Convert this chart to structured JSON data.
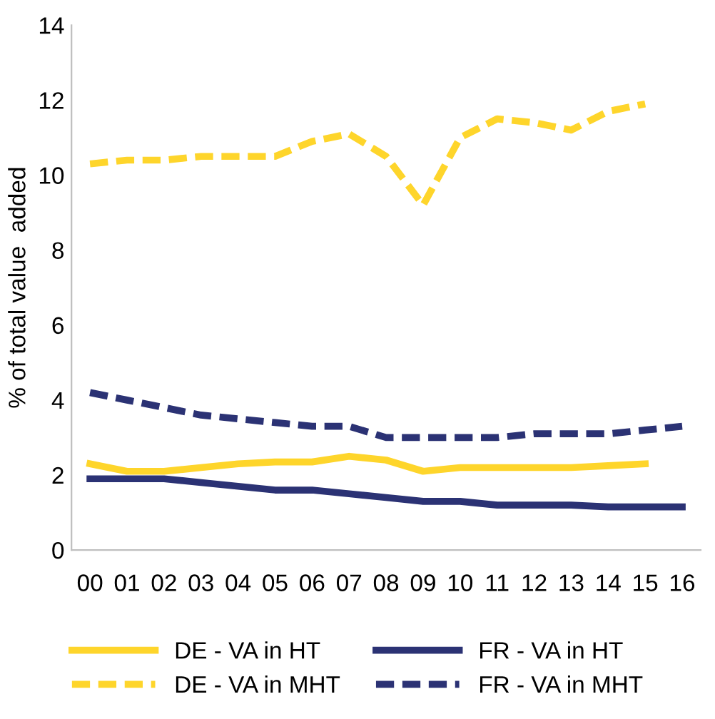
{
  "chart_data": {
    "type": "line",
    "ylabel": "% of total value  added",
    "categories": [
      "00",
      "01",
      "02",
      "03",
      "04",
      "05",
      "06",
      "07",
      "08",
      "09",
      "10",
      "11",
      "12",
      "13",
      "14",
      "15",
      "16"
    ],
    "ylim": [
      0,
      14
    ],
    "yticks": [
      0,
      2,
      4,
      6,
      8,
      10,
      12,
      14
    ],
    "grid": false,
    "legend": "bottom",
    "marker": "none",
    "series": [
      {
        "name": "DE - VA in HT",
        "color": "#fed52b",
        "line_style": "solid",
        "values": [
          2.3,
          2.1,
          2.1,
          2.2,
          2.3,
          2.35,
          2.35,
          2.5,
          2.4,
          2.1,
          2.2,
          2.2,
          2.2,
          2.2,
          2.25,
          2.3,
          null
        ]
      },
      {
        "name": "FR - VA in HT",
        "color": "#2b3274",
        "line_style": "solid",
        "values": [
          1.9,
          1.9,
          1.9,
          1.8,
          1.7,
          1.6,
          1.6,
          1.5,
          1.4,
          1.3,
          1.3,
          1.2,
          1.2,
          1.2,
          1.15,
          1.15,
          1.15
        ]
      },
      {
        "name": "DE - VA in MHT",
        "color": "#fed52b",
        "line_style": "dashed",
        "values": [
          10.3,
          10.4,
          10.4,
          10.5,
          10.5,
          10.5,
          10.9,
          11.1,
          10.5,
          9.2,
          11.0,
          11.5,
          11.4,
          11.2,
          11.7,
          11.9,
          null
        ]
      },
      {
        "name": "FR - VA in MHT",
        "color": "#2b3274",
        "line_style": "dashed",
        "values": [
          4.2,
          4.0,
          3.8,
          3.6,
          3.5,
          3.4,
          3.3,
          3.3,
          3.0,
          3.0,
          3.0,
          3.0,
          3.1,
          3.1,
          3.1,
          3.2,
          3.3
        ]
      }
    ]
  }
}
